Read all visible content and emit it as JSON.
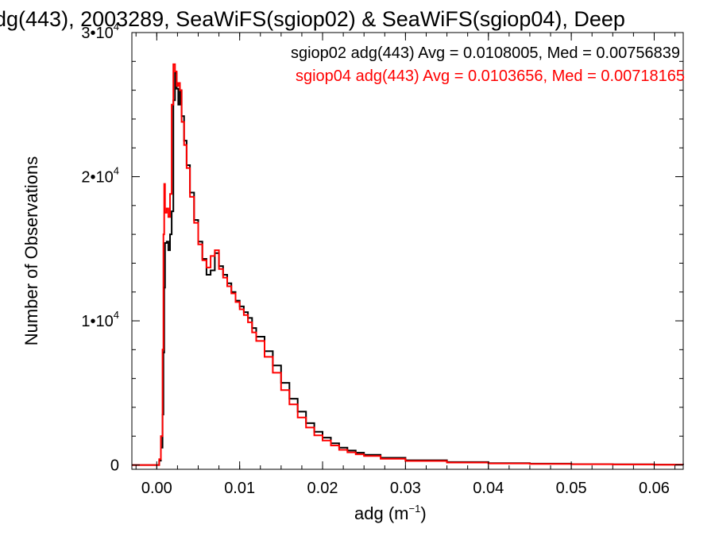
{
  "chart_data": {
    "type": "line",
    "title": "dg(443), 2003289, SeaWiFS(sgiop02) & SeaWiFS(sgiop04), Deep",
    "xlabel": "adg (m",
    "xlabel_sup": "−1",
    "xlabel_suffix": ")",
    "ylabel": "Number of Observations",
    "xlim": [
      -0.003,
      0.0635
    ],
    "ylim": [
      -300,
      30000
    ],
    "x_ticks": [
      {
        "value": 0.0,
        "label": "0.00"
      },
      {
        "value": 0.01,
        "label": "0.01"
      },
      {
        "value": 0.02,
        "label": "0.02"
      },
      {
        "value": 0.03,
        "label": "0.03"
      },
      {
        "value": 0.04,
        "label": "0.04"
      },
      {
        "value": 0.05,
        "label": "0.05"
      },
      {
        "value": 0.06,
        "label": "0.06"
      }
    ],
    "y_ticks": [
      {
        "value": 0,
        "mant": "0",
        "exp": ""
      },
      {
        "value": 10000,
        "mant": "1•10",
        "exp": "4"
      },
      {
        "value": 20000,
        "mant": "2•10",
        "exp": "4"
      },
      {
        "value": 30000,
        "mant": "3•10",
        "exp": "4"
      }
    ],
    "legend_position": "top-right",
    "step": true,
    "series": [
      {
        "name": "sgiop02 adg(443) Avg = 0.0108005, Med = 0.00756839",
        "color": "#000000",
        "points": [
          [
            -0.003,
            0
          ],
          [
            0.0002,
            0
          ],
          [
            0.0003,
            300
          ],
          [
            0.0005,
            1200
          ],
          [
            0.0007,
            3500
          ],
          [
            0.0008,
            7800
          ],
          [
            0.0009,
            12300
          ],
          [
            0.001,
            15400
          ],
          [
            0.0012,
            15500
          ],
          [
            0.0014,
            14900
          ],
          [
            0.0016,
            16000
          ],
          [
            0.0018,
            17600
          ],
          [
            0.002,
            25300
          ],
          [
            0.0022,
            27200
          ],
          [
            0.0024,
            26100
          ],
          [
            0.0026,
            25000
          ],
          [
            0.0028,
            26000
          ],
          [
            0.003,
            24200
          ],
          [
            0.0033,
            22500
          ],
          [
            0.0036,
            20800
          ],
          [
            0.004,
            18900
          ],
          [
            0.0045,
            17000
          ],
          [
            0.005,
            15500
          ],
          [
            0.0055,
            14300
          ],
          [
            0.006,
            13200
          ],
          [
            0.0065,
            13500
          ],
          [
            0.007,
            14700
          ],
          [
            0.0075,
            13800
          ],
          [
            0.008,
            13200
          ],
          [
            0.0085,
            12600
          ],
          [
            0.009,
            12000
          ],
          [
            0.0095,
            11400
          ],
          [
            0.01,
            11000
          ],
          [
            0.0105,
            10600
          ],
          [
            0.011,
            10200
          ],
          [
            0.0115,
            9500
          ],
          [
            0.012,
            8900
          ],
          [
            0.013,
            7900
          ],
          [
            0.014,
            6900
          ],
          [
            0.015,
            5700
          ],
          [
            0.016,
            4600
          ],
          [
            0.017,
            3700
          ],
          [
            0.018,
            2900
          ],
          [
            0.019,
            2300
          ],
          [
            0.02,
            1900
          ],
          [
            0.021,
            1500
          ],
          [
            0.022,
            1200
          ],
          [
            0.023,
            1000
          ],
          [
            0.024,
            850
          ],
          [
            0.025,
            700
          ],
          [
            0.027,
            500
          ],
          [
            0.03,
            330
          ],
          [
            0.035,
            200
          ],
          [
            0.04,
            130
          ],
          [
            0.045,
            90
          ],
          [
            0.05,
            60
          ],
          [
            0.055,
            40
          ],
          [
            0.06,
            25
          ],
          [
            0.0635,
            20
          ]
        ]
      },
      {
        "name": "sgiop04 adg(443) Avg = 0.0103656, Med = 0.00718165",
        "color": "#ff0000",
        "points": [
          [
            -0.003,
            0
          ],
          [
            0.0002,
            0
          ],
          [
            0.0003,
            400
          ],
          [
            0.0005,
            2000
          ],
          [
            0.0007,
            8000
          ],
          [
            0.0008,
            16000
          ],
          [
            0.0009,
            19500
          ],
          [
            0.001,
            17500
          ],
          [
            0.0012,
            17800
          ],
          [
            0.0014,
            17200
          ],
          [
            0.0016,
            18800
          ],
          [
            0.0018,
            25000
          ],
          [
            0.002,
            27800
          ],
          [
            0.0022,
            27300
          ],
          [
            0.0024,
            26300
          ],
          [
            0.0026,
            26500
          ],
          [
            0.0028,
            26000
          ],
          [
            0.003,
            23800
          ],
          [
            0.0033,
            22200
          ],
          [
            0.0036,
            20600
          ],
          [
            0.004,
            18600
          ],
          [
            0.0045,
            16800
          ],
          [
            0.005,
            15300
          ],
          [
            0.0055,
            14200
          ],
          [
            0.006,
            13700
          ],
          [
            0.0065,
            14500
          ],
          [
            0.007,
            14900
          ],
          [
            0.0075,
            13600
          ],
          [
            0.008,
            13000
          ],
          [
            0.0085,
            12400
          ],
          [
            0.009,
            11900
          ],
          [
            0.0095,
            11300
          ],
          [
            0.01,
            10800
          ],
          [
            0.0105,
            10400
          ],
          [
            0.011,
            9900
          ],
          [
            0.0115,
            9200
          ],
          [
            0.012,
            8600
          ],
          [
            0.013,
            7500
          ],
          [
            0.014,
            6400
          ],
          [
            0.015,
            5200
          ],
          [
            0.016,
            4200
          ],
          [
            0.017,
            3300
          ],
          [
            0.018,
            2600
          ],
          [
            0.019,
            2050
          ],
          [
            0.02,
            1700
          ],
          [
            0.021,
            1350
          ],
          [
            0.022,
            1050
          ],
          [
            0.023,
            880
          ],
          [
            0.024,
            740
          ],
          [
            0.025,
            620
          ],
          [
            0.027,
            430
          ],
          [
            0.03,
            280
          ],
          [
            0.035,
            170
          ],
          [
            0.04,
            110
          ],
          [
            0.045,
            75
          ],
          [
            0.05,
            50
          ],
          [
            0.055,
            35
          ],
          [
            0.06,
            22
          ],
          [
            0.0635,
            18
          ]
        ]
      }
    ]
  }
}
